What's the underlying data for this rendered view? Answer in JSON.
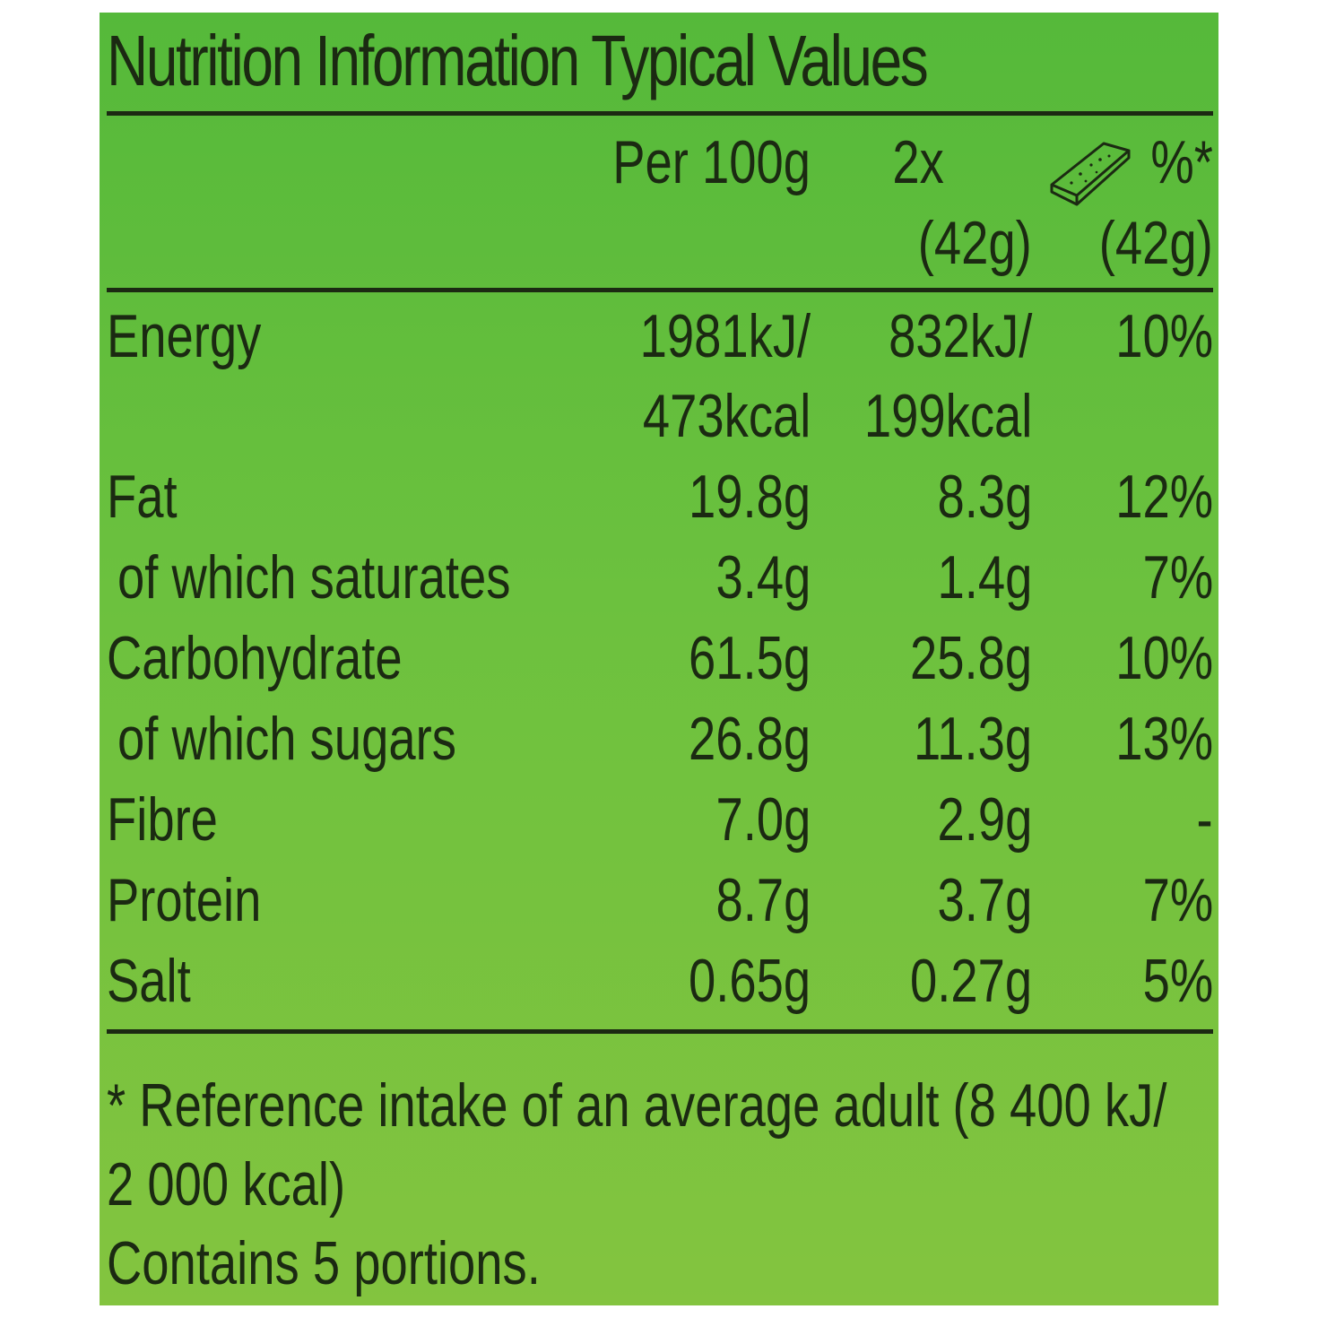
{
  "title": "Nutrition Information Typical Values",
  "header": {
    "col1": "Per 100g",
    "col2_prefix": "2x",
    "col2_icon": "cereal-bar-icon",
    "col2_sub": "(42g)",
    "col3": "%*",
    "col3_sub": "(42g)"
  },
  "rows": [
    {
      "label": "Energy",
      "per100": "1981kJ/",
      "serving": "832kJ/",
      "ri": "10%"
    },
    {
      "label": "",
      "per100": "473kcal",
      "serving": "199kcal",
      "ri": ""
    },
    {
      "label": "Fat",
      "per100": "19.8g",
      "serving": "8.3g",
      "ri": "12%"
    },
    {
      "label": "of which saturates",
      "per100": "3.4g",
      "serving": "1.4g",
      "ri": "7%"
    },
    {
      "label": "Carbohydrate",
      "per100": "61.5g",
      "serving": "25.8g",
      "ri": "10%"
    },
    {
      "label": "of which sugars",
      "per100": "26.8g",
      "serving": "11.3g",
      "ri": "13%"
    },
    {
      "label": "Fibre",
      "per100": "7.0g",
      "serving": "2.9g",
      "ri": "-"
    },
    {
      "label": "Protein",
      "per100": "8.7g",
      "serving": "3.7g",
      "ri": "7%"
    },
    {
      "label": "Salt",
      "per100": "0.65g",
      "serving": "0.27g",
      "ri": "5%"
    }
  ],
  "footnote": {
    "line1": "* Reference intake of an average adult (8 400 kJ/",
    "line2": "2 000 kcal)",
    "line3": "Contains 5 portions."
  },
  "colors": {
    "panel_top": "#55b93a",
    "panel_bottom": "#83c43f",
    "text": "#1b2a12"
  }
}
